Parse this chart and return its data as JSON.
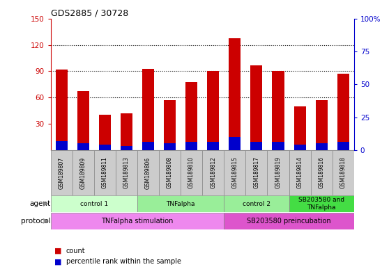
{
  "title": "GDS2885 / 30728",
  "samples": [
    "GSM189807",
    "GSM189809",
    "GSM189811",
    "GSM189813",
    "GSM189806",
    "GSM189808",
    "GSM189810",
    "GSM189812",
    "GSM189815",
    "GSM189817",
    "GSM189819",
    "GSM189814",
    "GSM189816",
    "GSM189818"
  ],
  "count_values": [
    92,
    67,
    40,
    42,
    93,
    57,
    78,
    90,
    128,
    97,
    90,
    50,
    57,
    87
  ],
  "percentile_values": [
    7,
    5,
    4,
    3,
    6,
    5,
    6,
    6,
    10,
    6,
    6,
    4,
    5,
    6
  ],
  "ylim_left": [
    0,
    150
  ],
  "ylim_right": [
    0,
    100
  ],
  "yticks_left": [
    30,
    60,
    90,
    120,
    150
  ],
  "yticks_right": [
    0,
    25,
    50,
    75,
    100
  ],
  "bar_color_count": "#cc0000",
  "bar_color_pct": "#0000cc",
  "bar_width": 0.55,
  "agent_groups": [
    {
      "label": "control 1",
      "start": 0,
      "end": 4,
      "color": "#ccffcc"
    },
    {
      "label": "TNFalpha",
      "start": 4,
      "end": 8,
      "color": "#99ee99"
    },
    {
      "label": "control 2",
      "start": 8,
      "end": 11,
      "color": "#99ee99"
    },
    {
      "label": "SB203580 and\nTNFalpha",
      "start": 11,
      "end": 14,
      "color": "#44dd44"
    }
  ],
  "protocol_groups": [
    {
      "label": "TNFalpha stimulation",
      "start": 0,
      "end": 8,
      "color": "#ee88ee"
    },
    {
      "label": "SB203580 preincubation",
      "start": 8,
      "end": 14,
      "color": "#dd55cc"
    }
  ],
  "bg_color": "#ffffff",
  "tick_color_left": "#cc0000",
  "tick_color_right": "#0000cc",
  "sample_box_color": "#cccccc",
  "legend_count_label": "count",
  "legend_pct_label": "percentile rank within the sample",
  "agent_label": "agent",
  "protocol_label": "protocol"
}
